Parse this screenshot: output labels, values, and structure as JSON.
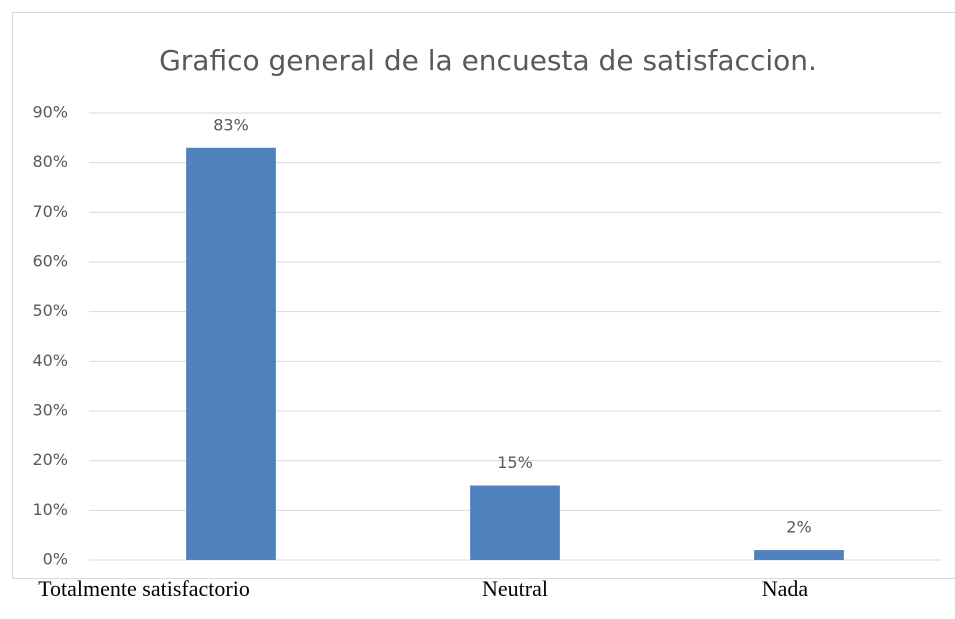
{
  "chart_data": {
    "type": "bar",
    "title": "Grafico general de la encuesta de satisfaccion.",
    "categories": [
      "Totalmente satisfactorio",
      "Neutral",
      "Nada"
    ],
    "values": [
      83,
      15,
      2
    ],
    "value_labels": [
      "83%",
      "15%",
      "2%"
    ],
    "color": "#4f81bd",
    "ylim": [
      0,
      90
    ],
    "yticks": [
      {
        "value": 0,
        "label": "0%"
      },
      {
        "value": 10,
        "label": "10%"
      },
      {
        "value": 20,
        "label": "20%"
      },
      {
        "value": 30,
        "label": "30%"
      },
      {
        "value": 40,
        "label": "40%"
      },
      {
        "value": 50,
        "label": "50%"
      },
      {
        "value": 60,
        "label": "60%"
      },
      {
        "value": 70,
        "label": "70%"
      },
      {
        "value": 80,
        "label": "80%"
      },
      {
        "value": 90,
        "label": "90%"
      }
    ],
    "grid": true
  }
}
